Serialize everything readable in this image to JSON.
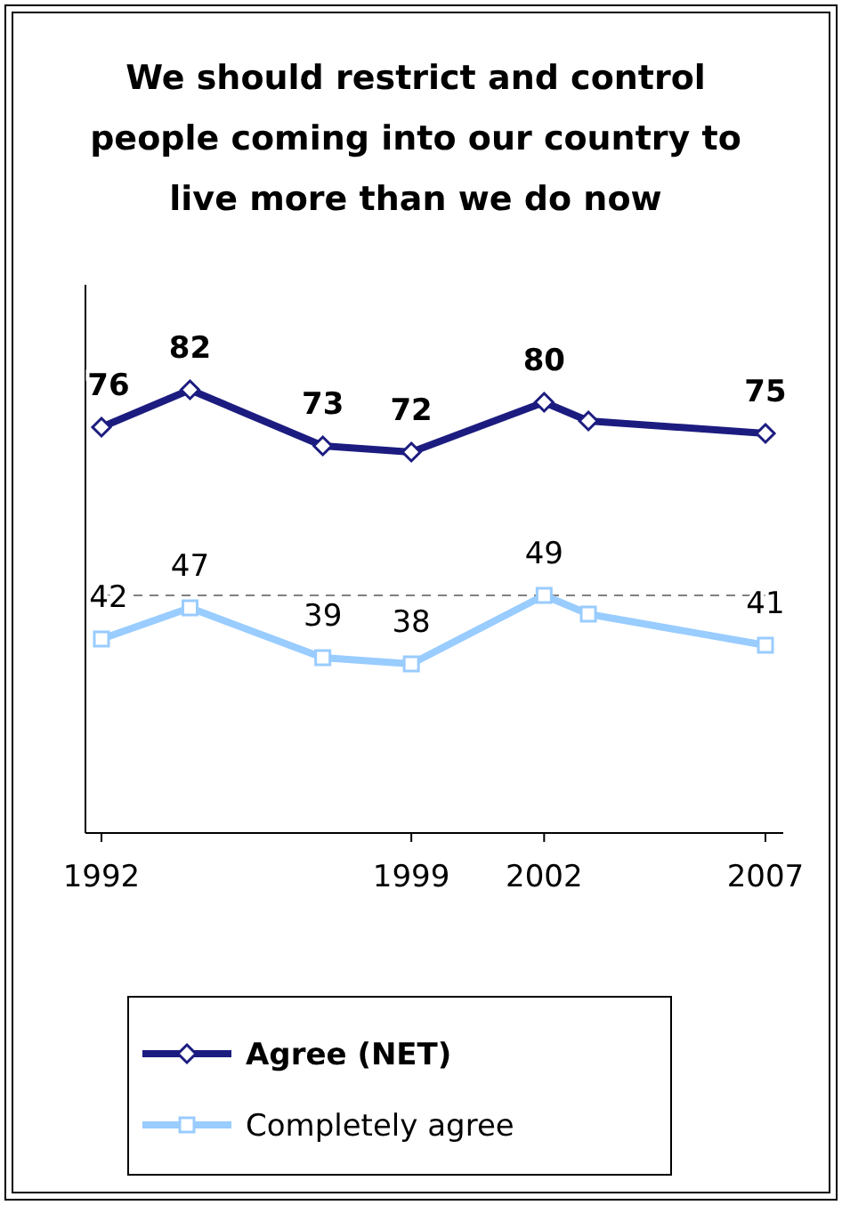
{
  "chart_data": {
    "type": "line",
    "title": "We should restrict and control people coming into our country to live more than we do now",
    "x": [
      1992,
      1994,
      1997,
      1999,
      2002,
      2003,
      2007
    ],
    "xlim": [
      1992,
      2007
    ],
    "xticks": [
      1992,
      1999,
      2002,
      2007
    ],
    "series": [
      {
        "name": "Agree (NET)",
        "color": "#1c1c80",
        "marker": "diamond",
        "values": [
          76,
          82,
          73,
          72,
          80,
          77,
          75
        ],
        "value_labels": [
          "76",
          "82",
          "73",
          "72",
          "80",
          null,
          "75"
        ]
      },
      {
        "name": "Completely agree",
        "color": "#99ccff",
        "marker": "square",
        "values": [
          42,
          47,
          39,
          38,
          49,
          46,
          41
        ],
        "value_labels": [
          "42",
          "47",
          "39",
          "38",
          "49",
          null,
          "41"
        ]
      }
    ],
    "ref_lines": [
      {
        "axis": "y",
        "value": 49,
        "color": "#808080",
        "line_style": "dashed"
      }
    ],
    "legend": "bottom",
    "grid": false
  }
}
